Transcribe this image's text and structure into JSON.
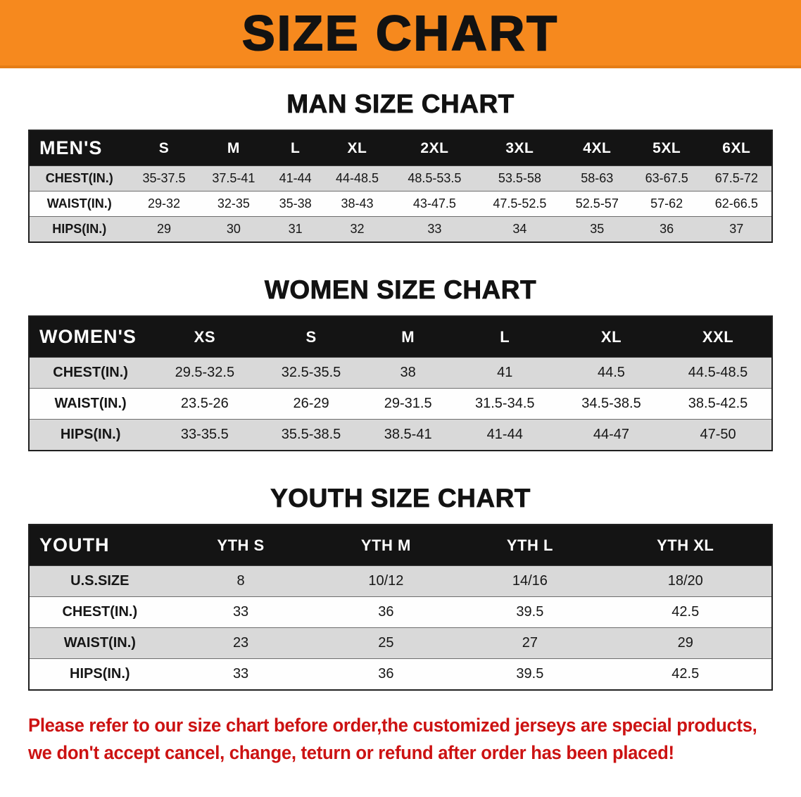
{
  "banner": {
    "title": "SIZE CHART"
  },
  "colors": {
    "banner_bg": "#F6891E",
    "banner_edge": "#E57D15",
    "table_header_bg": "#141414",
    "table_header_text": "#FFFFFF",
    "row_alt_bg": "#D9D9D9",
    "notice_text": "#CC1212"
  },
  "sections": [
    {
      "id": "mens",
      "heading": "MAN SIZE CHART",
      "table": {
        "header": [
          "MEN'S",
          "S",
          "M",
          "L",
          "XL",
          "2XL",
          "3XL",
          "4XL",
          "5XL",
          "6XL"
        ],
        "rows": [
          {
            "label": "CHEST(IN.)",
            "values": [
              "35-37.5",
              "37.5-41",
              "41-44",
              "44-48.5",
              "48.5-53.5",
              "53.5-58",
              "58-63",
              "63-67.5",
              "67.5-72"
            ]
          },
          {
            "label": "WAIST(IN.)",
            "values": [
              "29-32",
              "32-35",
              "35-38",
              "38-43",
              "43-47.5",
              "47.5-52.5",
              "52.5-57",
              "57-62",
              "62-66.5"
            ]
          },
          {
            "label": "HIPS(IN.)",
            "values": [
              "29",
              "30",
              "31",
              "32",
              "33",
              "34",
              "35",
              "36",
              "37"
            ]
          }
        ]
      }
    },
    {
      "id": "womens",
      "heading": "WOMEN SIZE CHART",
      "table": {
        "header": [
          "WOMEN'S",
          "XS",
          "S",
          "M",
          "L",
          "XL",
          "XXL"
        ],
        "rows": [
          {
            "label": "CHEST(IN.)",
            "values": [
              "29.5-32.5",
              "32.5-35.5",
              "38",
              "41",
              "44.5",
              "44.5-48.5"
            ]
          },
          {
            "label": "WAIST(IN.)",
            "values": [
              "23.5-26",
              "26-29",
              "29-31.5",
              "31.5-34.5",
              "34.5-38.5",
              "38.5-42.5"
            ]
          },
          {
            "label": "HIPS(IN.)",
            "values": [
              "33-35.5",
              "35.5-38.5",
              "38.5-41",
              "41-44",
              "44-47",
              "47-50"
            ]
          }
        ]
      }
    },
    {
      "id": "youth",
      "heading": "YOUTH SIZE CHART",
      "table": {
        "header": [
          "YOUTH",
          "YTH S",
          "YTH M",
          "YTH L",
          "YTH XL"
        ],
        "rows": [
          {
            "label": "U.S.SIZE",
            "values": [
              "8",
              "10/12",
              "14/16",
              "18/20"
            ]
          },
          {
            "label": "CHEST(IN.)",
            "values": [
              "33",
              "36",
              "39.5",
              "42.5"
            ]
          },
          {
            "label": "WAIST(IN.)",
            "values": [
              "23",
              "25",
              "27",
              "29"
            ]
          },
          {
            "label": "HIPS(IN.)",
            "values": [
              "33",
              "36",
              "39.5",
              "42.5"
            ]
          }
        ]
      }
    }
  ],
  "notice": {
    "lines": [
      "Please refer to our size chart before order,the customized jerseys are special products,",
      "we don't accept cancel, change, teturn or refund after order has been placed!"
    ]
  }
}
